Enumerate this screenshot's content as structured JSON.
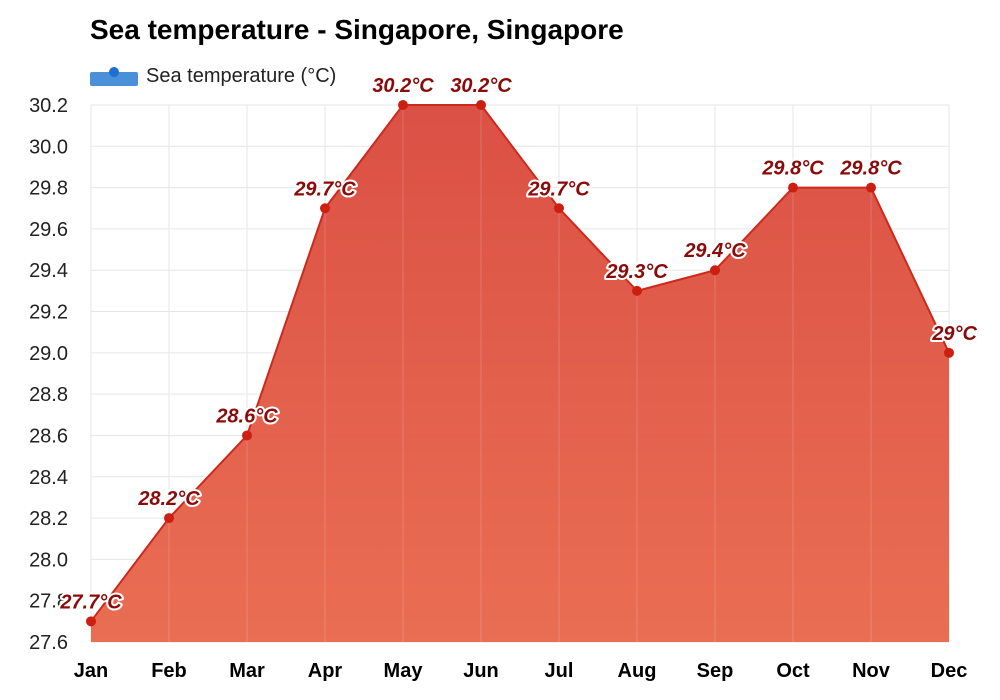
{
  "chart_data": {
    "type": "area",
    "title": "Sea temperature - Singapore, Singapore",
    "categories": [
      "Jan",
      "Feb",
      "Mar",
      "Apr",
      "May",
      "Jun",
      "Jul",
      "Aug",
      "Sep",
      "Oct",
      "Nov",
      "Dec"
    ],
    "series": [
      {
        "name": "Sea temperature (°C)",
        "values": [
          27.7,
          28.2,
          28.6,
          29.7,
          30.2,
          30.2,
          29.7,
          29.3,
          29.4,
          29.8,
          29.8,
          29.0
        ],
        "labels": [
          "27.7°C",
          "28.2°C",
          "28.6°C",
          "29.7°C",
          "30.2°C",
          "30.2°C",
          "29.7°C",
          "29.3°C",
          "29.4°C",
          "29.8°C",
          "29.8°C",
          "29°C"
        ]
      }
    ],
    "yticks": [
      "27.6",
      "27.8",
      "28.0",
      "28.2",
      "28.4",
      "28.6",
      "28.8",
      "29.0",
      "29.2",
      "29.4",
      "29.6",
      "29.8",
      "30.0",
      "30.2"
    ],
    "ylim": [
      27.6,
      30.2
    ],
    "grid": true,
    "legend_position": "top-left",
    "colors": {
      "fill_top": "#d9473b",
      "fill_bottom": "#e8664a",
      "line": "#cc2a1d",
      "marker": "#cc1f12",
      "label": "#8b0a0a",
      "legend_bar": "#4a90d9",
      "legend_dot": "#1f6fd1"
    }
  }
}
